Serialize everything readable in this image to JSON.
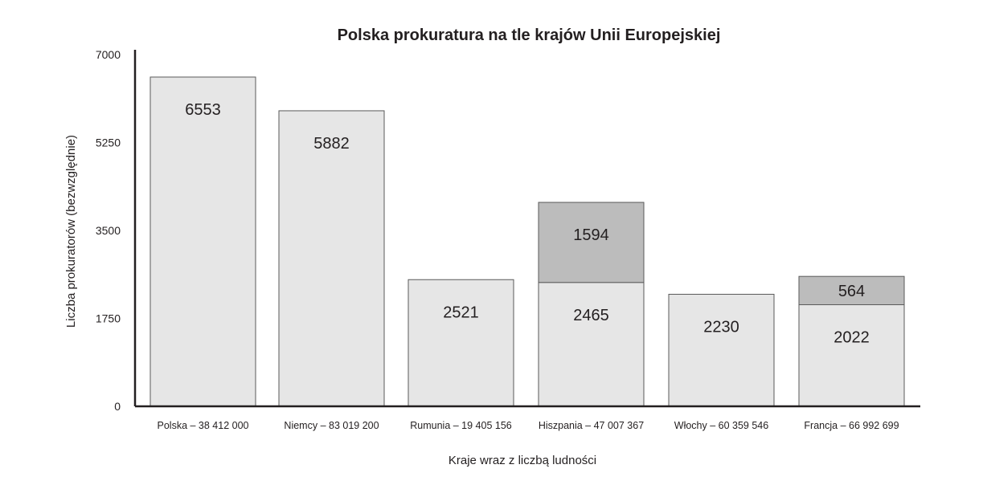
{
  "chart_data": {
    "type": "bar",
    "stacked": true,
    "title": "Polska prokuratura na tle krajów Unii Europejskiej",
    "xlabel": "Kraje wraz z liczbą ludności",
    "ylabel": "Liczba prokuratorów (bezwzględnie)",
    "ylim": [
      0,
      7000
    ],
    "yticks": [
      "0",
      "1750",
      "3500",
      "5250",
      "7000"
    ],
    "grid": false,
    "legend": "none",
    "categories": [
      "Polska – 38 412 000",
      "Niemcy – 83 019 200",
      "Rumunia – 19 405 156",
      "Hiszpania – 47 007 367",
      "Włochy – 60 359 546",
      "Francja – 66 992 699"
    ],
    "series": [
      {
        "values": [
          6553,
          5882,
          2521,
          2465,
          2230,
          2022
        ],
        "color": "#e6e6e6",
        "labels": [
          "6553",
          "5882",
          "2521",
          "2465",
          "2230",
          "2022"
        ]
      },
      {
        "values": [
          0,
          0,
          0,
          1594,
          0,
          564
        ],
        "color": "#bcbcbc",
        "labels": [
          "",
          "",
          "",
          "1594",
          "",
          "564"
        ]
      }
    ]
  }
}
